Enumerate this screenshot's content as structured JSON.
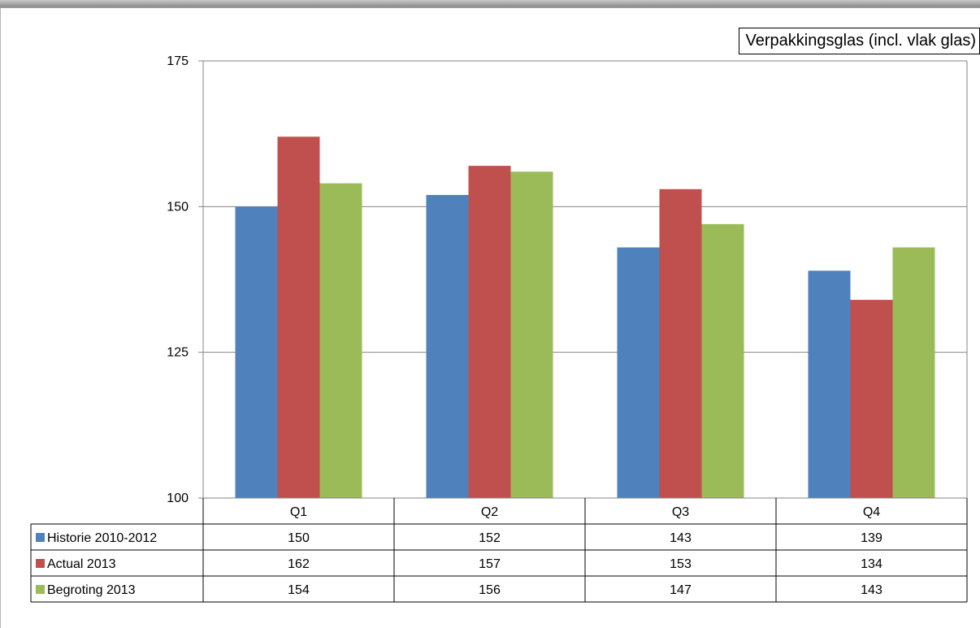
{
  "chart_data": {
    "type": "bar",
    "title": "Verpakkingsglas (incl. vlak glas)",
    "categories": [
      "Q1",
      "Q2",
      "Q3",
      "Q4"
    ],
    "ylim": [
      100,
      175
    ],
    "yticks": [
      100,
      125,
      150,
      175
    ],
    "grid": true,
    "legend": "data-table-left",
    "series": [
      {
        "name": "Historie 2010-2012",
        "color": "#4f81bd",
        "values": [
          150,
          152,
          143,
          139
        ],
        "table_values": [
          "150",
          "152",
          "143",
          "139"
        ]
      },
      {
        "name": "Actual 2013",
        "color": "#c0504d",
        "values": [
          162,
          157,
          153,
          134
        ],
        "table_values": [
          "162",
          "157",
          "153",
          "134"
        ]
      },
      {
        "name": "Begroting 2013",
        "color": "#9bbb59",
        "values": [
          154,
          156,
          147,
          143
        ],
        "table_values": [
          "154",
          "156",
          "147",
          "143"
        ]
      }
    ]
  }
}
